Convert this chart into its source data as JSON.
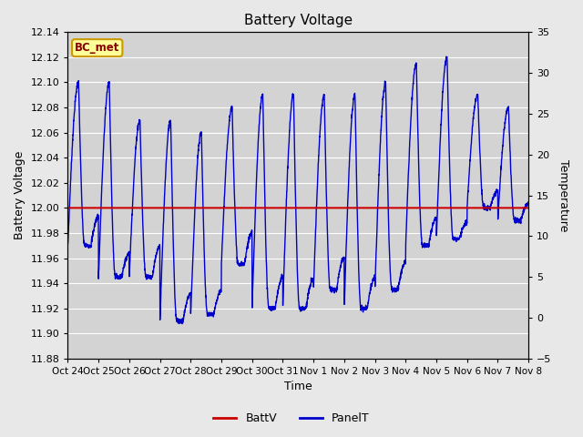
{
  "title": "Battery Voltage",
  "xlabel": "Time",
  "ylabel_left": "Battery Voltage",
  "ylabel_right": "Temperature",
  "ylim_left": [
    11.88,
    12.14
  ],
  "ylim_right": [
    -5,
    35
  ],
  "yticks_left": [
    11.88,
    11.9,
    11.92,
    11.94,
    11.96,
    11.98,
    12.0,
    12.02,
    12.04,
    12.06,
    12.08,
    12.1,
    12.12,
    12.14
  ],
  "yticks_right": [
    -5,
    0,
    5,
    10,
    15,
    20,
    25,
    30,
    35
  ],
  "x_tick_labels": [
    "Oct 24",
    "Oct 25",
    "Oct 26",
    "Oct 27",
    "Oct 28",
    "Oct 29",
    "Oct 30",
    "Oct 31",
    "Nov 1",
    "Nov 2",
    "Nov 3",
    "Nov 4",
    "Nov 5",
    "Nov 6",
    "Nov 7",
    "Nov 8"
  ],
  "batt_v_value": 12.0,
  "batt_color": "#cc0000",
  "panel_color": "#0000cc",
  "bg_color": "#e8e8e8",
  "plot_bg_color": "#d3d3d3",
  "legend_label_batt": "BattV",
  "legend_label_panel": "PanelT",
  "station_label": "BC_met",
  "station_label_bg": "#ffff99",
  "station_label_border": "#cc9900"
}
